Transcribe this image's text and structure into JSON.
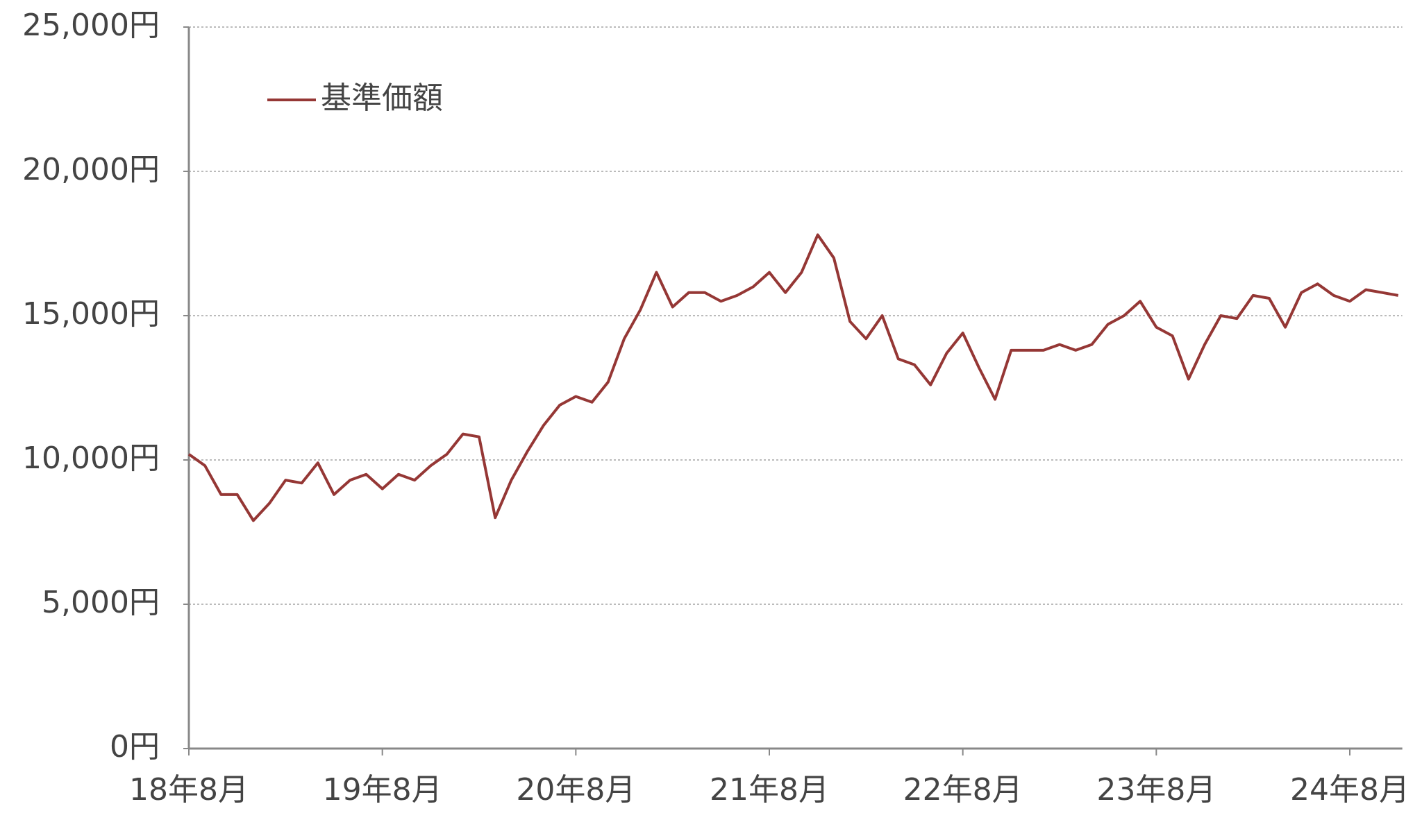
{
  "chart_data": {
    "type": "line",
    "categories": [
      "18年8月",
      null,
      null,
      null,
      null,
      null,
      null,
      null,
      null,
      null,
      null,
      null,
      "19年8月",
      null,
      null,
      null,
      null,
      null,
      null,
      null,
      null,
      null,
      null,
      null,
      "20年8月",
      null,
      null,
      null,
      null,
      null,
      null,
      null,
      null,
      null,
      null,
      null,
      "21年8月",
      null,
      null,
      null,
      null,
      null,
      null,
      null,
      null,
      null,
      null,
      null,
      "22年8月",
      null,
      null,
      null,
      null,
      null,
      null,
      null,
      null,
      null,
      null,
      null,
      "23年8月",
      null,
      null,
      null,
      null,
      null,
      null,
      null,
      null,
      null,
      null,
      null,
      "24年8月",
      null,
      null,
      null
    ],
    "series": [
      {
        "name": "基準価額",
        "color": "#953735",
        "values": [
          10200,
          9800,
          8800,
          8800,
          7900,
          8500,
          9300,
          9200,
          9900,
          8800,
          9300,
          9500,
          9000,
          9500,
          9300,
          9800,
          10200,
          10900,
          10800,
          8000,
          9300,
          10300,
          11200,
          11900,
          12200,
          12000,
          12700,
          14200,
          15200,
          16500,
          15300,
          15800,
          15800,
          15500,
          15700,
          16000,
          16500,
          15800,
          16500,
          17800,
          17000,
          14800,
          14200,
          15000,
          13500,
          13300,
          12600,
          13700,
          14400,
          13200,
          12100,
          13800,
          13800,
          13800,
          14000,
          13800,
          14000,
          14700,
          15000,
          15500,
          14600,
          14300,
          12800,
          14000,
          15000,
          14900,
          15700,
          15600,
          14600,
          15800,
          16100,
          15700,
          15500,
          15900,
          15800,
          15700
        ]
      }
    ],
    "ylim": [
      0,
      25000
    ],
    "yticks": [
      {
        "value": 0,
        "label": "0円"
      },
      {
        "value": 5000,
        "label": "5,000円"
      },
      {
        "value": 10000,
        "label": "10,000円"
      },
      {
        "value": 15000,
        "label": "15,000円"
      },
      {
        "value": 20000,
        "label": "20,000円"
      },
      {
        "value": 25000,
        "label": "25,000円"
      }
    ],
    "grid": true,
    "legend": "upper left"
  }
}
